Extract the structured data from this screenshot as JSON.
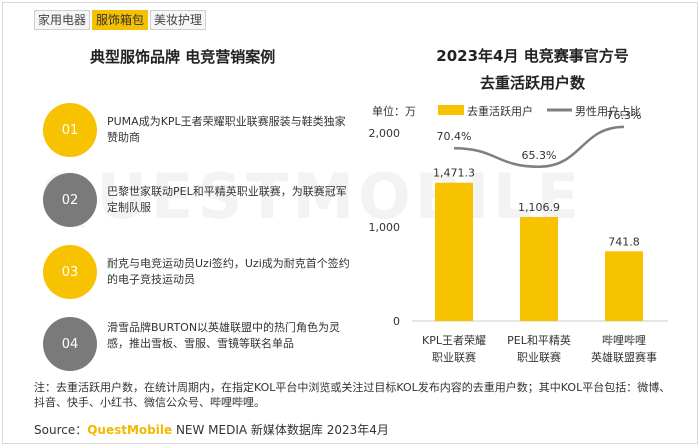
{
  "tabs": [
    "家用电器",
    "服饰箱包",
    "美妆护理"
  ],
  "left_title": "典型服饰品牌 电竞营销案例",
  "cases": [
    {
      "num": "01",
      "text": "PUMA成为KPL王者荣耀职业联赛服装与鞋类独家赞助商"
    },
    {
      "num": "02",
      "text": "巴黎世家联动PEL和平精英职业联赛，为联赛冠军定制队服"
    },
    {
      "num": "03",
      "text": "耐克与电竞运动员Uzi签约，Uzi成为耐克首个签约的电子竞技运动员"
    },
    {
      "num": "04",
      "text": "滑雪品牌BURTON以英雄联盟中的热门角色为灵感，推出雪板、雪服、雪镜等联名单品"
    }
  ],
  "colors": {
    "accent": "#f7c200",
    "gray": "#7a7a7a",
    "line": "#7f7f7f"
  },
  "chart_data": {
    "type": "bar",
    "title_line1": "2023年4月 电竞赛事官方号",
    "title_line2": "去重活跃用户数",
    "unit_label": "单位：万",
    "categories": [
      "KPL王者荣耀\n职业联赛",
      "PEL和平精英\n职业联赛",
      "哔哩哔哩\n英雄联盟赛事"
    ],
    "series": [
      {
        "name": "去重活跃用户",
        "values": [
          1471.3,
          1106.9,
          741.8
        ],
        "labels": [
          "1,471.3",
          "1,106.9",
          "741.8"
        ]
      },
      {
        "name": "男性用户占比",
        "values": [
          70.4,
          65.3,
          76.3
        ],
        "labels": [
          "70.4%",
          "65.3%",
          "76.3%"
        ]
      }
    ],
    "yticks": [
      "0",
      "1,000",
      "2,000"
    ],
    "ylim": [
      0,
      2000
    ]
  },
  "note": "注：去重活跃用户数，在统计周期内，在指定KOL平台中浏览或关注过目标KOL发布内容的去重用户数；其中KOL平台包括：微博、抖音、快手、小红书、微信公众号、哔哩哔哩。",
  "source_prefix": "Source：",
  "source_brand": "QuestMobile",
  "source_rest": " NEW MEDIA 新媒体数据库 2023年4月",
  "watermark": "QUESTMOBILE"
}
